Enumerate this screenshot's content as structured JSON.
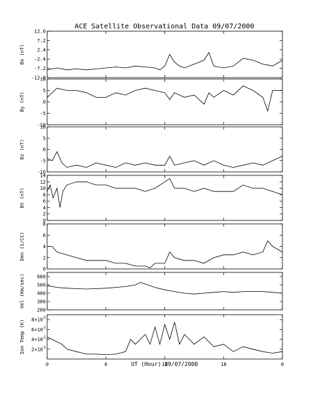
{
  "chart_data": [
    {
      "type": "line",
      "title": "ACE Satellite Observational Data   09/07/2000",
      "ylabel": "Bx (nT)",
      "ylim": [
        -12,
        12
      ],
      "yticks": [
        "12.0",
        "7.2",
        "2.4",
        "-2.4",
        "-7.2",
        "-12.0"
      ],
      "ytick_values": [
        12,
        7.2,
        2.4,
        -2.4,
        -7.2,
        -12
      ],
      "xlim": [
        0,
        24
      ],
      "series": [
        {
          "x": [
            0,
            1,
            2,
            3,
            4,
            5,
            6,
            7,
            8,
            9,
            10,
            11,
            11.5,
            12,
            12.5,
            13,
            13.5,
            14,
            15,
            16,
            16.5,
            17,
            18,
            19,
            20,
            21,
            22,
            23,
            24
          ],
          "values": [
            -8,
            -7,
            -8,
            -7.5,
            -8,
            -7.5,
            -7,
            -6.5,
            -7,
            -6,
            -6.5,
            -7,
            -8,
            -6,
            0,
            -4,
            -6,
            -7,
            -5,
            -3,
            1,
            -6,
            -7,
            -6,
            -2,
            -3,
            -5,
            -6,
            -3
          ]
        }
      ]
    },
    {
      "type": "line",
      "ylabel": "By (nT)",
      "ylim": [
        -10,
        10
      ],
      "yticks": [
        "10",
        "5",
        "0",
        "-5",
        "-10"
      ],
      "ytick_values": [
        10,
        5,
        0,
        -5,
        -10
      ],
      "xlim": [
        0,
        24
      ],
      "series": [
        {
          "x": [
            0,
            0.5,
            1,
            2,
            3,
            4,
            5,
            6,
            7,
            8,
            9,
            10,
            11,
            12,
            12.5,
            13,
            14,
            15,
            16,
            16.5,
            17,
            18,
            19,
            20,
            21,
            22,
            22.5,
            23,
            24
          ],
          "values": [
            2,
            4,
            6,
            5,
            5,
            4,
            2,
            2,
            4,
            3,
            5,
            6,
            5,
            4,
            1,
            4,
            2,
            3,
            -1,
            4,
            2,
            5,
            3,
            7,
            5,
            2,
            -4,
            5,
            5
          ]
        }
      ]
    },
    {
      "type": "line",
      "ylabel": "Bz (nT)",
      "ylim": [
        -10,
        10
      ],
      "yticks": [
        "10",
        "5",
        "0",
        "-5",
        "-10"
      ],
      "ytick_values": [
        10,
        5,
        0,
        -5,
        -10
      ],
      "xlim": [
        0,
        24
      ],
      "series": [
        {
          "x": [
            0,
            0.5,
            1,
            1.5,
            2,
            3,
            4,
            5,
            6,
            7,
            8,
            9,
            10,
            11,
            12,
            12.5,
            13,
            14,
            15,
            16,
            17,
            18,
            19,
            20,
            21,
            22,
            23,
            24
          ],
          "values": [
            -4,
            -5,
            -1,
            -6,
            -8,
            -7,
            -8,
            -6,
            -7,
            -8,
            -6,
            -7,
            -6,
            -7,
            -7,
            -3,
            -7,
            -6,
            -5,
            -7,
            -5,
            -7,
            -8,
            -7,
            -6,
            -7,
            -5,
            -3
          ]
        }
      ]
    },
    {
      "type": "line",
      "ylabel": "Bt (nT)",
      "ylim": [
        0,
        14
      ],
      "yticks": [
        "14",
        "12",
        "10",
        "8",
        "6",
        "4",
        "2",
        "0"
      ],
      "ytick_values": [
        14,
        12,
        10,
        8,
        6,
        4,
        2,
        0
      ],
      "xlim": [
        0,
        24
      ],
      "series": [
        {
          "x": [
            0,
            0.3,
            0.6,
            1,
            1.3,
            1.6,
            2,
            3,
            4,
            5,
            6,
            7,
            8,
            9,
            10,
            11,
            12,
            12.5,
            13,
            14,
            15,
            16,
            17,
            18,
            19,
            20,
            21,
            22,
            23,
            24
          ],
          "values": [
            9,
            11,
            7,
            10,
            4,
            9,
            11,
            12,
            12,
            11,
            11,
            10,
            10,
            10,
            9,
            10,
            12,
            13,
            10,
            10,
            9,
            10,
            9,
            9,
            9,
            11,
            10,
            10,
            9,
            8
          ]
        }
      ]
    },
    {
      "type": "line",
      "ylabel": "Den (1/CC)",
      "ylim": [
        0,
        8
      ],
      "yticks": [
        "8",
        "6",
        "4",
        "2",
        "0"
      ],
      "ytick_values": [
        8,
        6,
        4,
        2,
        0
      ],
      "xlim": [
        0,
        24
      ],
      "series": [
        {
          "x": [
            0,
            0.5,
            1,
            2,
            3,
            4,
            5,
            6,
            7,
            8,
            9,
            10,
            10.5,
            11,
            12,
            12.5,
            13,
            14,
            15,
            16,
            17,
            18,
            19,
            20,
            21,
            22,
            22.5,
            23,
            24
          ],
          "values": [
            4,
            4,
            3,
            2.5,
            2,
            1.5,
            1.5,
            1.5,
            1,
            1,
            0.5,
            0.5,
            0.2,
            1,
            1,
            3,
            2,
            1.5,
            1.5,
            1,
            2,
            2.5,
            2.5,
            3,
            2.5,
            3,
            5,
            4,
            3
          ]
        }
      ]
    },
    {
      "type": "line",
      "ylabel": "Vel (Km/sec)",
      "ylim": [
        200,
        650
      ],
      "yticks": [
        "600",
        "500",
        "400",
        "300",
        "200"
      ],
      "ytick_values": [
        600,
        500,
        400,
        300,
        200
      ],
      "xlim": [
        0,
        24
      ],
      "series": [
        {
          "x": [
            0,
            1,
            2,
            3,
            4,
            5,
            6,
            7,
            8,
            9,
            9.5,
            10,
            11,
            12,
            12.5,
            13,
            14,
            15,
            16,
            17,
            18,
            19,
            20,
            21,
            22,
            23,
            24
          ],
          "values": [
            490,
            470,
            460,
            455,
            450,
            455,
            460,
            470,
            480,
            500,
            530,
            510,
            470,
            440,
            430,
            420,
            400,
            390,
            400,
            410,
            420,
            410,
            420,
            420,
            420,
            410,
            400
          ]
        }
      ]
    },
    {
      "type": "line",
      "ylabel": "Ion Temp (K)",
      "ylim": [
        0,
        900000
      ],
      "yticks": [
        "8×10",
        "6×10",
        "4×10",
        "2×10"
      ],
      "ytick_exponent": "5",
      "ytick_values": [
        800000,
        600000,
        400000,
        200000
      ],
      "xlabel": "UT (Hour)   09/07/2000",
      "xticks": [
        "0",
        "6",
        "12",
        "18",
        "0"
      ],
      "xtick_values": [
        0,
        6,
        12,
        18,
        24
      ],
      "xlim": [
        0,
        24
      ],
      "series": [
        {
          "x": [
            0,
            0.5,
            1,
            1.5,
            2,
            3,
            4,
            5,
            6,
            7,
            8,
            8.5,
            9,
            10,
            10.5,
            11,
            11.5,
            12,
            12.5,
            13,
            13.5,
            14,
            15,
            16,
            17,
            18,
            19,
            20,
            21,
            22,
            23,
            24
          ],
          "values": [
            450000,
            400000,
            350000,
            300000,
            200000,
            150000,
            100000,
            100000,
            90000,
            100000,
            150000,
            400000,
            300000,
            500000,
            300000,
            650000,
            300000,
            700000,
            400000,
            750000,
            300000,
            500000,
            300000,
            450000,
            250000,
            300000,
            150000,
            250000,
            200000,
            150000,
            120000,
            150000
          ]
        }
      ]
    }
  ]
}
